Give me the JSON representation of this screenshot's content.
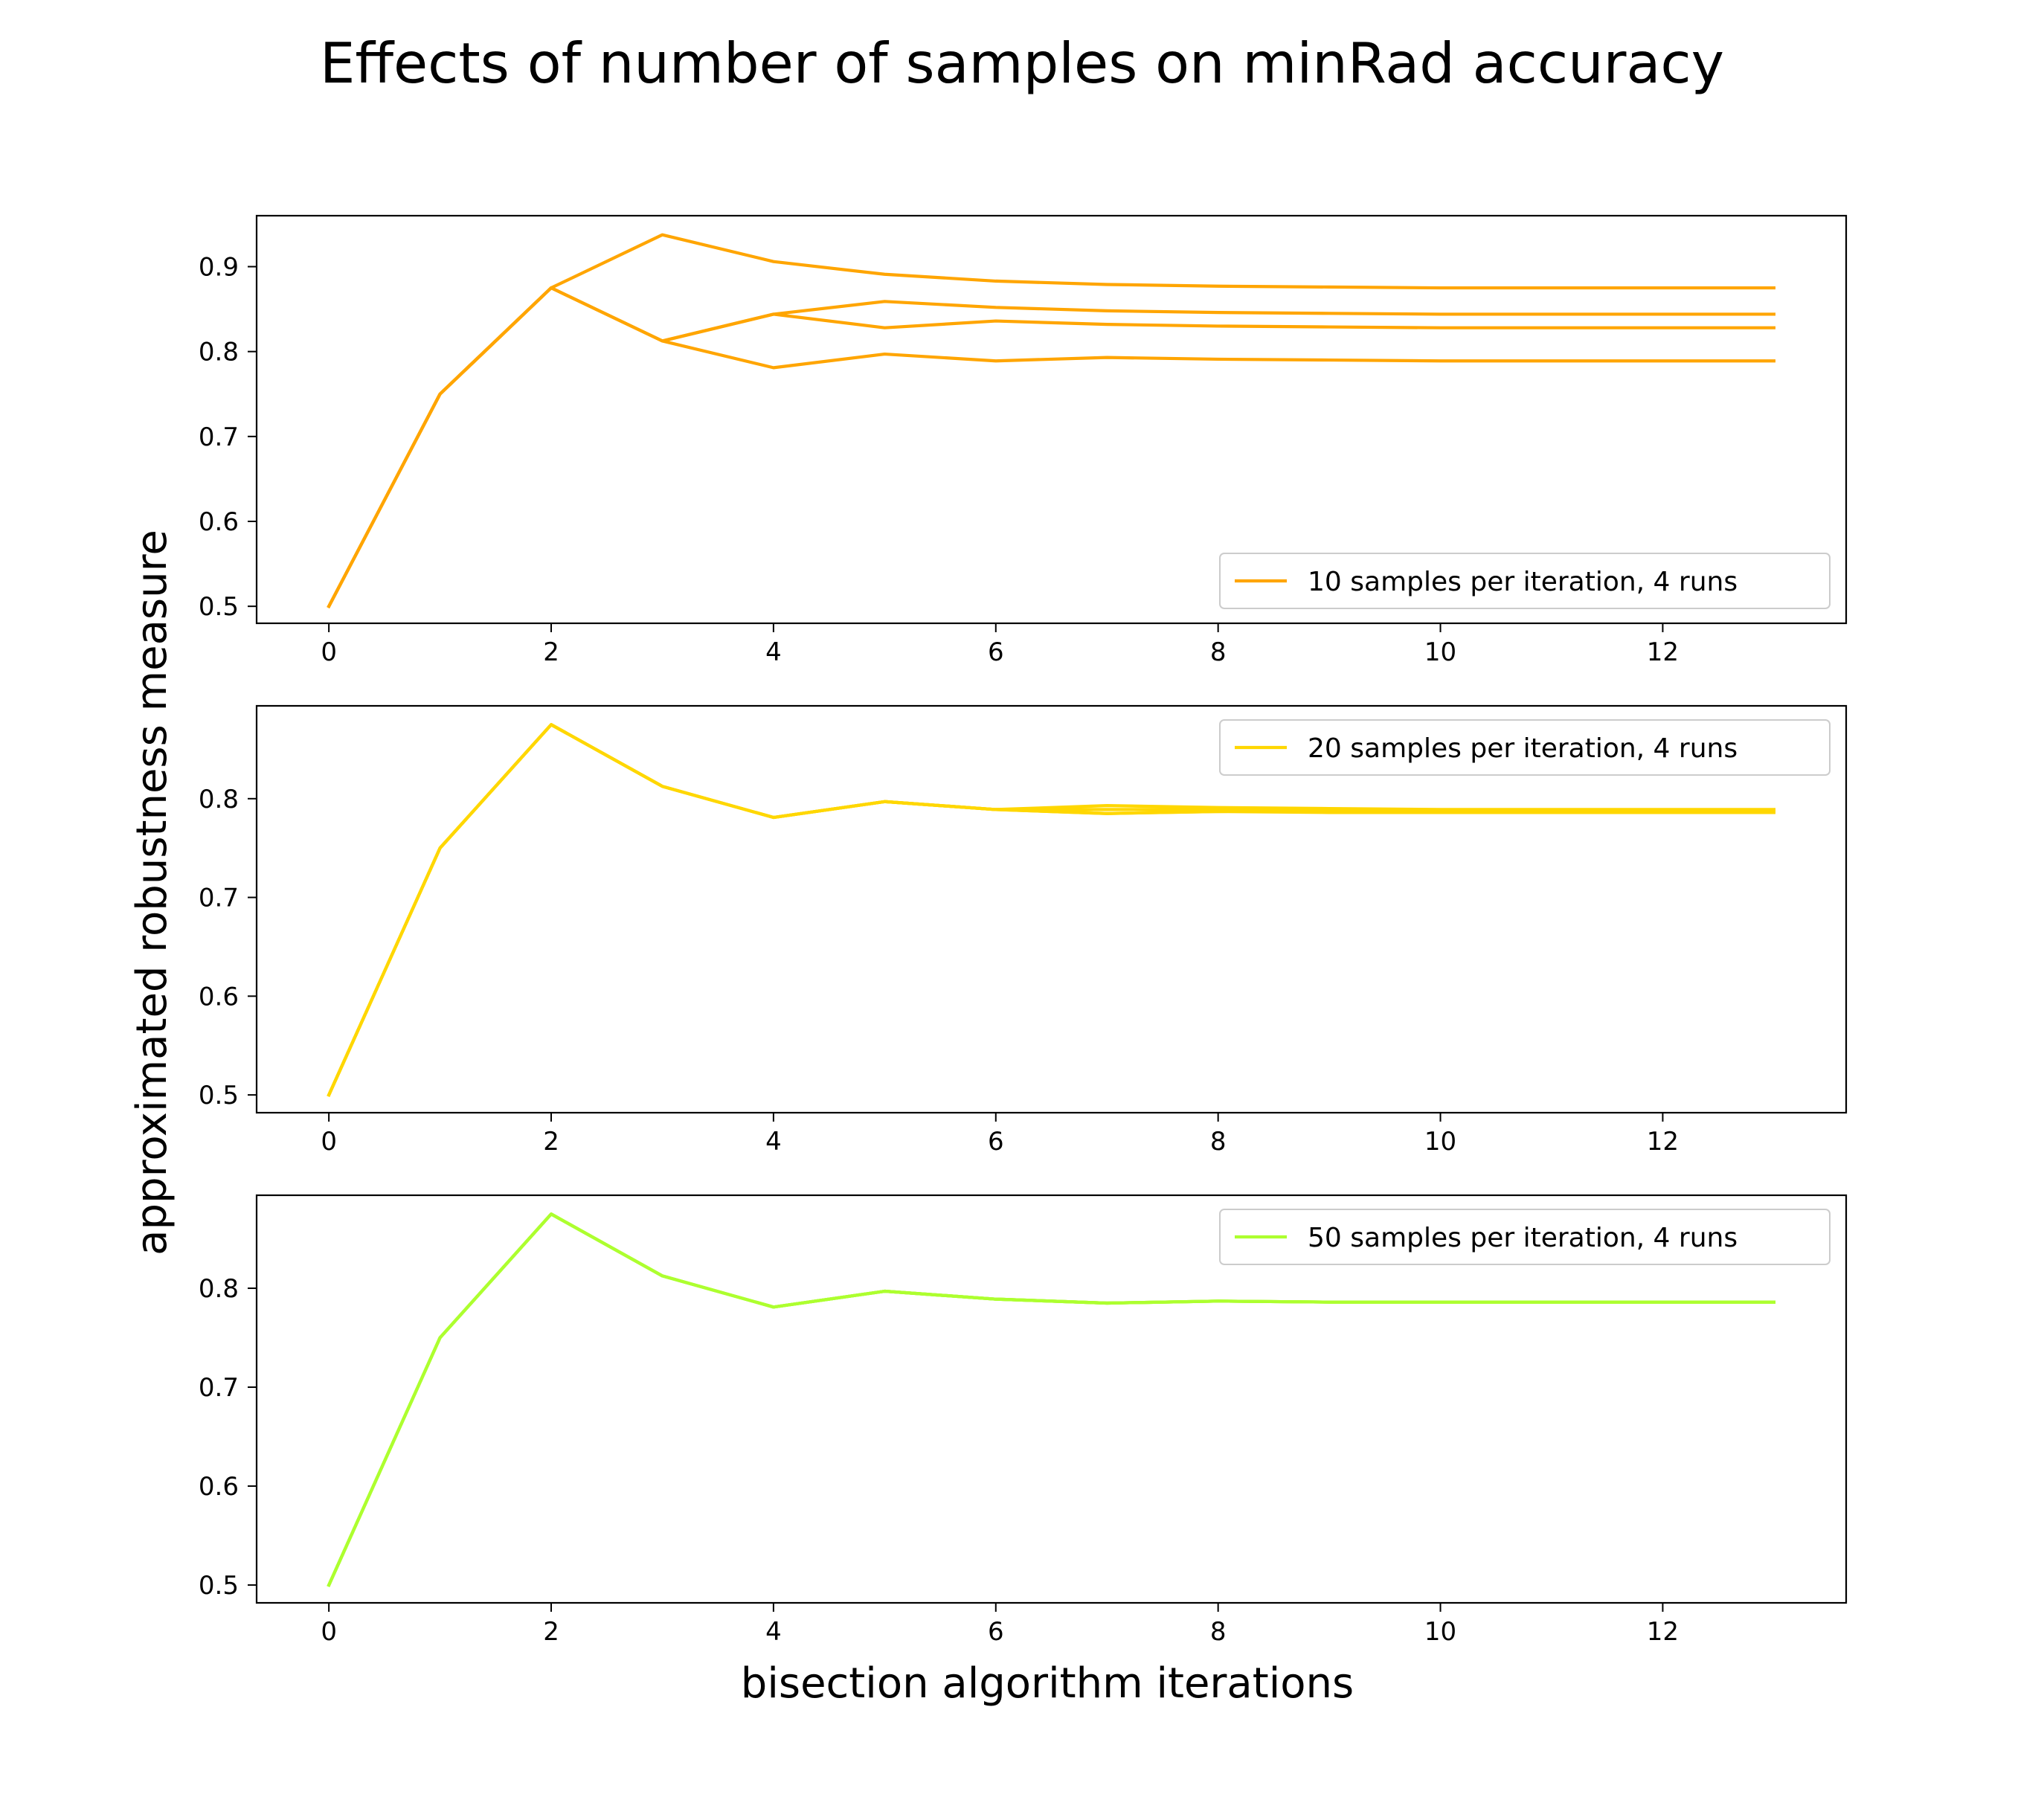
{
  "figure": {
    "title": "Effects of number of samples on minRad accuracy",
    "ylabel": "approximated robustness measure",
    "xlabel": "bisection algorithm iterations"
  },
  "chart_data": [
    {
      "type": "line",
      "title": "",
      "xlabel": "",
      "ylabel": "",
      "xlim": [
        -0.65,
        13.65
      ],
      "ylim": [
        0.48,
        0.96
      ],
      "xticks": [
        0,
        2,
        4,
        6,
        8,
        10,
        12
      ],
      "yticks": [
        0.5,
        0.6,
        0.7,
        0.8,
        0.9
      ],
      "legend_position": "lower-right",
      "legend_label": "10 samples per iteration, 4 runs",
      "color": "#FFA500",
      "x": [
        0,
        1,
        2,
        3,
        4,
        5,
        6,
        7,
        8,
        9,
        10,
        11,
        12,
        13
      ],
      "series": [
        {
          "values": [
            0.5,
            0.75,
            0.875,
            0.9375,
            0.906,
            0.891,
            0.883,
            0.879,
            0.877,
            0.876,
            0.875,
            0.875,
            0.875,
            0.875
          ]
        },
        {
          "values": [
            0.5,
            0.75,
            0.875,
            0.8125,
            0.844,
            0.859,
            0.852,
            0.848,
            0.846,
            0.845,
            0.844,
            0.844,
            0.844,
            0.844
          ]
        },
        {
          "values": [
            0.5,
            0.75,
            0.875,
            0.8125,
            0.844,
            0.828,
            0.836,
            0.832,
            0.83,
            0.829,
            0.828,
            0.828,
            0.828,
            0.828
          ]
        },
        {
          "values": [
            0.5,
            0.75,
            0.875,
            0.8125,
            0.781,
            0.797,
            0.789,
            0.793,
            0.791,
            0.79,
            0.789,
            0.789,
            0.789,
            0.789
          ]
        }
      ]
    },
    {
      "type": "line",
      "title": "",
      "xlabel": "",
      "ylabel": "",
      "xlim": [
        -0.65,
        13.65
      ],
      "ylim": [
        0.482,
        0.894
      ],
      "xticks": [
        0,
        2,
        4,
        6,
        8,
        10,
        12
      ],
      "yticks": [
        0.5,
        0.6,
        0.7,
        0.8
      ],
      "legend_position": "upper-right",
      "legend_label": "20 samples per iteration, 4 runs",
      "color": "#FFD700",
      "x": [
        0,
        1,
        2,
        3,
        4,
        5,
        6,
        7,
        8,
        9,
        10,
        11,
        12,
        13
      ],
      "series": [
        {
          "values": [
            0.5,
            0.75,
            0.875,
            0.8125,
            0.781,
            0.797,
            0.789,
            0.793,
            0.791,
            0.79,
            0.789,
            0.789,
            0.789,
            0.789
          ]
        },
        {
          "values": [
            0.5,
            0.75,
            0.875,
            0.8125,
            0.781,
            0.797,
            0.789,
            0.785,
            0.787,
            0.788,
            0.788,
            0.788,
            0.788,
            0.788
          ]
        },
        {
          "values": [
            0.5,
            0.75,
            0.875,
            0.8125,
            0.781,
            0.797,
            0.789,
            0.785,
            0.787,
            0.786,
            0.786,
            0.786,
            0.786,
            0.786
          ]
        },
        {
          "values": [
            0.5,
            0.75,
            0.875,
            0.8125,
            0.781,
            0.797,
            0.789,
            0.789,
            0.789,
            0.787,
            0.787,
            0.787,
            0.787,
            0.787
          ]
        }
      ]
    },
    {
      "type": "line",
      "title": "",
      "xlabel": "",
      "ylabel": "",
      "xlim": [
        -0.65,
        13.65
      ],
      "ylim": [
        0.482,
        0.894
      ],
      "xticks": [
        0,
        2,
        4,
        6,
        8,
        10,
        12
      ],
      "yticks": [
        0.5,
        0.6,
        0.7,
        0.8
      ],
      "legend_position": "upper-right",
      "legend_label": "50 samples per iteration, 4 runs",
      "color": "#ADFF2F",
      "x": [
        0,
        1,
        2,
        3,
        4,
        5,
        6,
        7,
        8,
        9,
        10,
        11,
        12,
        13
      ],
      "series": [
        {
          "values": [
            0.5,
            0.75,
            0.875,
            0.8125,
            0.781,
            0.797,
            0.789,
            0.785,
            0.787,
            0.786,
            0.786,
            0.786,
            0.786,
            0.786
          ]
        },
        {
          "values": [
            0.5,
            0.75,
            0.875,
            0.8125,
            0.781,
            0.797,
            0.789,
            0.785,
            0.787,
            0.786,
            0.786,
            0.786,
            0.786,
            0.786
          ]
        },
        {
          "values": [
            0.5,
            0.75,
            0.875,
            0.8125,
            0.781,
            0.797,
            0.789,
            0.785,
            0.787,
            0.786,
            0.786,
            0.786,
            0.786,
            0.786
          ]
        },
        {
          "values": [
            0.5,
            0.75,
            0.875,
            0.8125,
            0.781,
            0.797,
            0.789,
            0.785,
            0.787,
            0.786,
            0.786,
            0.786,
            0.786,
            0.786
          ]
        }
      ]
    }
  ]
}
